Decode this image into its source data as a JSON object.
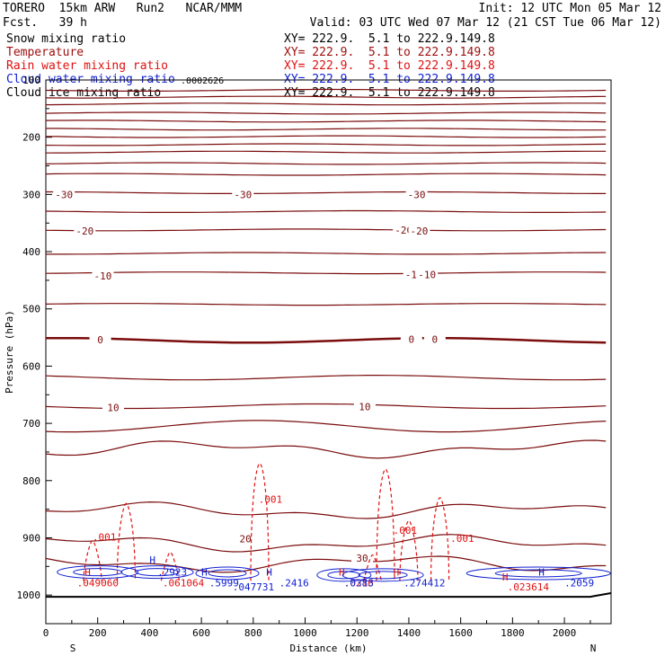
{
  "header": {
    "model": "TORERO  15km ARW   Run2   NCAR/MMM",
    "init": "Init: 12 UTC Mon 05 Mar 12",
    "fcst": "Fcst.   39 h",
    "valid": "Valid: 03 UTC Wed 07 Mar 12 (21 CST Tue 06 Mar 12)"
  },
  "legend": [
    {
      "name": "Snow mixing ratio",
      "xy": "XY= 222.9.  5.1 to 222.9.149.8",
      "color": "#000000"
    },
    {
      "name": "Temperature",
      "xy": "XY= 222.9.  5.1 to 222.9.149.8",
      "color": "#a01010"
    },
    {
      "name": "Rain water mixing ratio",
      "xy": "XY= 222.9.  5.1 to 222.9.149.8",
      "color": "#e01010"
    },
    {
      "name": "Cloud water mixing ratio",
      "xy": "XY= 222.9.  5.1 to 222.9.149.8",
      "color": "#1020d0"
    },
    {
      "name": "Cloud ice mixing ratio",
      "xy": "XY= 222.9.  5.1 to 222.9.149.8",
      "color": "#000000"
    }
  ],
  "chart_data": {
    "type": "line",
    "xlabel": "Distance (km)",
    "ylabel": "Pressure (hPa)",
    "xlim": [
      0,
      2180
    ],
    "ylim": [
      1050,
      100
    ],
    "x_ticks": [
      0,
      200,
      400,
      600,
      800,
      1000,
      1200,
      1400,
      1600,
      1800,
      2000
    ],
    "y_ticks": [
      100,
      200,
      300,
      400,
      500,
      600,
      700,
      800,
      900,
      1000
    ],
    "x_end_labels": {
      "left": "S",
      "right": "N"
    },
    "temperature_isotherms": {
      "color": "#7a0c0c",
      "levels_p": [
        118,
        130,
        142,
        158,
        172,
        186,
        199,
        213,
        226,
        246,
        265,
        297,
        330,
        362,
        403,
        437,
        492,
        555,
        620,
        670,
        705,
        745,
        853,
        910,
        945
      ],
      "labels": [
        {
          "text": "-30",
          "x": 70,
          "p": 300
        },
        {
          "text": "-30",
          "x": 760,
          "p": 300
        },
        {
          "text": "-30",
          "x": 1430,
          "p": 300
        },
        {
          "text": "-20",
          "x": 150,
          "p": 364
        },
        {
          "text": "-20",
          "x": 1380,
          "p": 362
        },
        {
          "text": "-20",
          "x": 1440,
          "p": 364
        },
        {
          "text": "-10",
          "x": 220,
          "p": 442
        },
        {
          "text": "-10",
          "x": 1420,
          "p": 440
        },
        {
          "text": "-10",
          "x": 1470,
          "p": 440
        },
        {
          "text": "0",
          "x": 210,
          "p": 554
        },
        {
          "text": "0",
          "x": 1410,
          "p": 553
        },
        {
          "text": "0",
          "x": 1500,
          "p": 553
        },
        {
          "text": "10",
          "x": 260,
          "p": 672
        },
        {
          "text": "10",
          "x": 1230,
          "p": 671
        },
        {
          "text": "20",
          "x": 770,
          "p": 902
        },
        {
          "text": "30",
          "x": 1220,
          "p": 935
        }
      ]
    },
    "rain_contour_labels": [
      {
        "text": ".001",
        "x": 180,
        "p": 905
      },
      {
        "text": ".001",
        "x": 820,
        "p": 839
      },
      {
        "text": ".001",
        "x": 1340,
        "p": 893
      },
      {
        "text": ".001",
        "x": 1560,
        "p": 907
      },
      {
        "text": ".049060",
        "x": 120,
        "p": 985
      },
      {
        "text": ".061064",
        "x": 450,
        "p": 985
      },
      {
        "text": ".023614",
        "x": 1780,
        "p": 992
      },
      {
        "text": ".0216",
        "x": 1150,
        "p": 985
      }
    ],
    "cloud_water_labels": [
      {
        "text": ".2923",
        "x": 430,
        "p": 966
      },
      {
        "text": ".5999",
        "x": 630,
        "p": 985
      },
      {
        "text": ".047731",
        "x": 720,
        "p": 992
      },
      {
        "text": ".2416",
        "x": 900,
        "p": 985
      },
      {
        "text": ".0383",
        "x": 1150,
        "p": 985
      },
      {
        "text": ".274412",
        "x": 1380,
        "p": 985
      },
      {
        "text": ".2059",
        "x": 2000,
        "p": 985
      }
    ],
    "highs": [
      {
        "text": "H",
        "x": 150,
        "p": 966,
        "color": "#e01010"
      },
      {
        "text": "H",
        "x": 400,
        "p": 945,
        "color": "#1020d0"
      },
      {
        "text": "H",
        "x": 600,
        "p": 966,
        "color": "#1020d0"
      },
      {
        "text": "H",
        "x": 850,
        "p": 966,
        "color": "#1020d0"
      },
      {
        "text": "H",
        "x": 1130,
        "p": 966,
        "color": "#e01010"
      },
      {
        "text": "H",
        "x": 1340,
        "p": 966,
        "color": "#e01010"
      },
      {
        "text": "H",
        "x": 1760,
        "p": 975,
        "color": "#e01010"
      },
      {
        "text": "H",
        "x": 1900,
        "p": 966,
        "color": "#1020d0"
      }
    ],
    "snow_label": {
      "text": ".0002626",
      "x": 520,
      "p": 106
    }
  }
}
